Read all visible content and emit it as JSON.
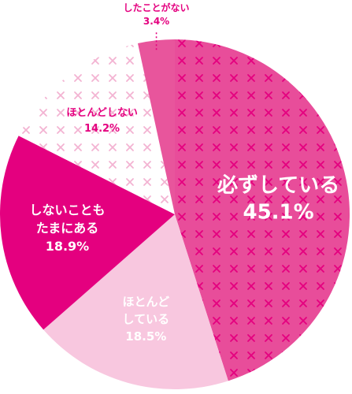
{
  "chart_data": {
    "type": "pie",
    "title": "",
    "slices": [
      {
        "label": "必ずしている",
        "label_lines": [
          "必ずしている"
        ],
        "value": 45.1,
        "value_text": "45.1%",
        "color": "#e84d9a",
        "pattern": "cross",
        "text_color": "#ffffff"
      },
      {
        "label": "ほとんどしている",
        "label_lines": [
          "ほとんど",
          "している"
        ],
        "value": 18.5,
        "value_text": "18.5%",
        "color": "#f8c7df",
        "pattern": "none",
        "text_color": "#ffffff"
      },
      {
        "label": "しないこともたまにある",
        "label_lines": [
          "しないことも",
          "たまにある"
        ],
        "value": 18.9,
        "value_text": "18.9%",
        "color": "#e4007f",
        "pattern": "none",
        "text_color": "#ffffff"
      },
      {
        "label": "ほとんどしない",
        "label_lines": [
          "ほとんどしない"
        ],
        "value": 14.2,
        "value_text": "14.2%",
        "color": "#ffffff",
        "pattern": "cross-light",
        "text_color": "#e4007f"
      },
      {
        "label": "したことがない",
        "label_lines": [
          "したことがない"
        ],
        "value": 3.4,
        "value_text": "3.4%",
        "color": "#e8559c",
        "pattern": "none",
        "text_color": "#e4007f"
      }
    ]
  }
}
